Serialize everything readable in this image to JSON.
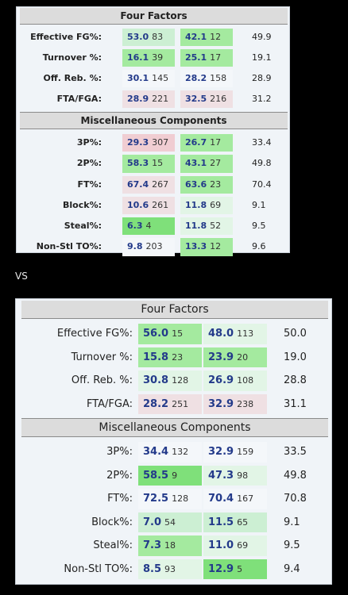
{
  "vs_label": "VS",
  "panel1": {
    "four_factors_title": "Four Factors",
    "four_factors": [
      {
        "label": "Effective FG%:",
        "a": "53.0",
        "ar": "83",
        "as": "mg",
        "b": "42.1",
        "br": "12",
        "bs": "g",
        "avg": "49.9"
      },
      {
        "label": "Turnover %:",
        "a": "16.1",
        "ar": "39",
        "as": "g",
        "b": "25.1",
        "br": "17",
        "bs": "g",
        "avg": "19.1"
      },
      {
        "label": "Off. Reb. %:",
        "a": "30.1",
        "ar": "145",
        "as": "w",
        "b": "28.2",
        "br": "158",
        "bs": "w",
        "avg": "28.9"
      },
      {
        "label": "FTA/FGA:",
        "a": "28.9",
        "ar": "221",
        "as": "lp",
        "b": "32.5",
        "br": "216",
        "bs": "lp",
        "avg": "31.2"
      }
    ],
    "misc_title": "Miscellaneous Components",
    "misc": [
      {
        "label": "3P%:",
        "a": "29.3",
        "ar": "307",
        "as": "p",
        "b": "26.7",
        "br": "17",
        "bs": "g",
        "avg": "33.4"
      },
      {
        "label": "2P%:",
        "a": "58.3",
        "ar": "15",
        "as": "g",
        "b": "43.1",
        "br": "27",
        "bs": "g",
        "avg": "49.8"
      },
      {
        "label": "FT%:",
        "a": "67.4",
        "ar": "267",
        "as": "lp",
        "b": "63.6",
        "br": "23",
        "bs": "g",
        "avg": "70.4"
      },
      {
        "label": "Block%:",
        "a": "10.6",
        "ar": "261",
        "as": "lp",
        "b": "11.8",
        "br": "69",
        "bs": "lg",
        "avg": "9.1"
      },
      {
        "label": "Steal%:",
        "a": "6.3",
        "ar": "4",
        "as": "bg",
        "b": "11.8",
        "br": "52",
        "bs": "lg",
        "avg": "9.5"
      },
      {
        "label": "Non-Stl TO%:",
        "a": "9.8",
        "ar": "203",
        "as": "w",
        "b": "13.3",
        "br": "12",
        "bs": "g",
        "avg": "9.6"
      }
    ]
  },
  "panel2": {
    "four_factors_title": "Four Factors",
    "four_factors": [
      {
        "label": "Effective FG%:",
        "a": "56.0",
        "ar": "15",
        "as": "g",
        "b": "48.0",
        "br": "113",
        "bs": "lg",
        "avg": "50.0"
      },
      {
        "label": "Turnover %:",
        "a": "15.8",
        "ar": "23",
        "as": "g",
        "b": "23.9",
        "br": "20",
        "bs": "g",
        "avg": "19.0"
      },
      {
        "label": "Off. Reb. %:",
        "a": "30.8",
        "ar": "128",
        "as": "lg",
        "b": "26.9",
        "br": "108",
        "bs": "lg",
        "avg": "28.8"
      },
      {
        "label": "FTA/FGA:",
        "a": "28.2",
        "ar": "251",
        "as": "lp",
        "b": "32.9",
        "br": "238",
        "bs": "lp",
        "avg": "31.1"
      }
    ],
    "misc_title": "Miscellaneous Components",
    "misc": [
      {
        "label": "3P%:",
        "a": "34.4",
        "ar": "132",
        "as": "w",
        "b": "32.9",
        "br": "159",
        "bs": "w",
        "avg": "33.5"
      },
      {
        "label": "2P%:",
        "a": "58.5",
        "ar": "9",
        "as": "bg",
        "b": "47.3",
        "br": "98",
        "bs": "lg",
        "avg": "49.8"
      },
      {
        "label": "FT%:",
        "a": "72.5",
        "ar": "128",
        "as": "w",
        "b": "70.4",
        "br": "167",
        "bs": "w",
        "avg": "70.8"
      },
      {
        "label": "Block%:",
        "a": "7.0",
        "ar": "54",
        "as": "mg",
        "b": "11.5",
        "br": "65",
        "bs": "mg",
        "avg": "9.1"
      },
      {
        "label": "Steal%:",
        "a": "7.3",
        "ar": "18",
        "as": "g",
        "b": "11.0",
        "br": "69",
        "bs": "lg",
        "avg": "9.5"
      },
      {
        "label": "Non-Stl TO%:",
        "a": "8.5",
        "ar": "93",
        "as": "lg",
        "b": "12.9",
        "br": "5",
        "bs": "bg",
        "avg": "9.4"
      }
    ]
  }
}
